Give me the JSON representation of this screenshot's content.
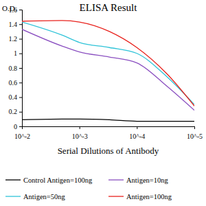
{
  "chart_data": {
    "type": "line",
    "title": "ELISA Result",
    "y_label": "O.D.",
    "x_label": "Serial Dilutions of Antibody",
    "log": "x",
    "x": [
      0.01,
      0.002,
      0.001,
      0.0003,
      0.0001,
      3e-05,
      1e-05
    ],
    "xlim": [
      0.01,
      1e-05
    ],
    "xticks": [
      {
        "value": 0.01,
        "label": "10^-2"
      },
      {
        "value": 0.001,
        "label": "10^-3"
      },
      {
        "value": 0.0001,
        "label": "10^-4"
      },
      {
        "value": 1e-05,
        "label": "10^-5"
      }
    ],
    "ylim": [
      0,
      1.6
    ],
    "yticks": [
      0,
      0.2,
      0.4,
      0.6,
      0.8,
      1,
      1.2,
      1.4,
      1.6
    ],
    "grid": false,
    "legend": "bottom",
    "series": [
      {
        "name": "Control Antigen=100ng",
        "color": "#000000",
        "values": [
          0.09,
          0.1,
          0.1,
          0.09,
          0.07,
          0.07,
          0.07
        ]
      },
      {
        "name": "Antigen=10ng",
        "color": "#8a4fc0",
        "values": [
          1.33,
          1.1,
          1.02,
          0.95,
          0.87,
          0.55,
          0.22
        ]
      },
      {
        "name": "Antigen=50ng",
        "color": "#2fc3d8",
        "values": [
          1.43,
          1.25,
          1.15,
          1.08,
          1.0,
          0.68,
          0.3
        ]
      },
      {
        "name": "Antigen=100ng",
        "color": "#e8211c",
        "values": [
          1.44,
          1.45,
          1.43,
          1.3,
          1.08,
          0.72,
          0.28
        ]
      }
    ]
  }
}
